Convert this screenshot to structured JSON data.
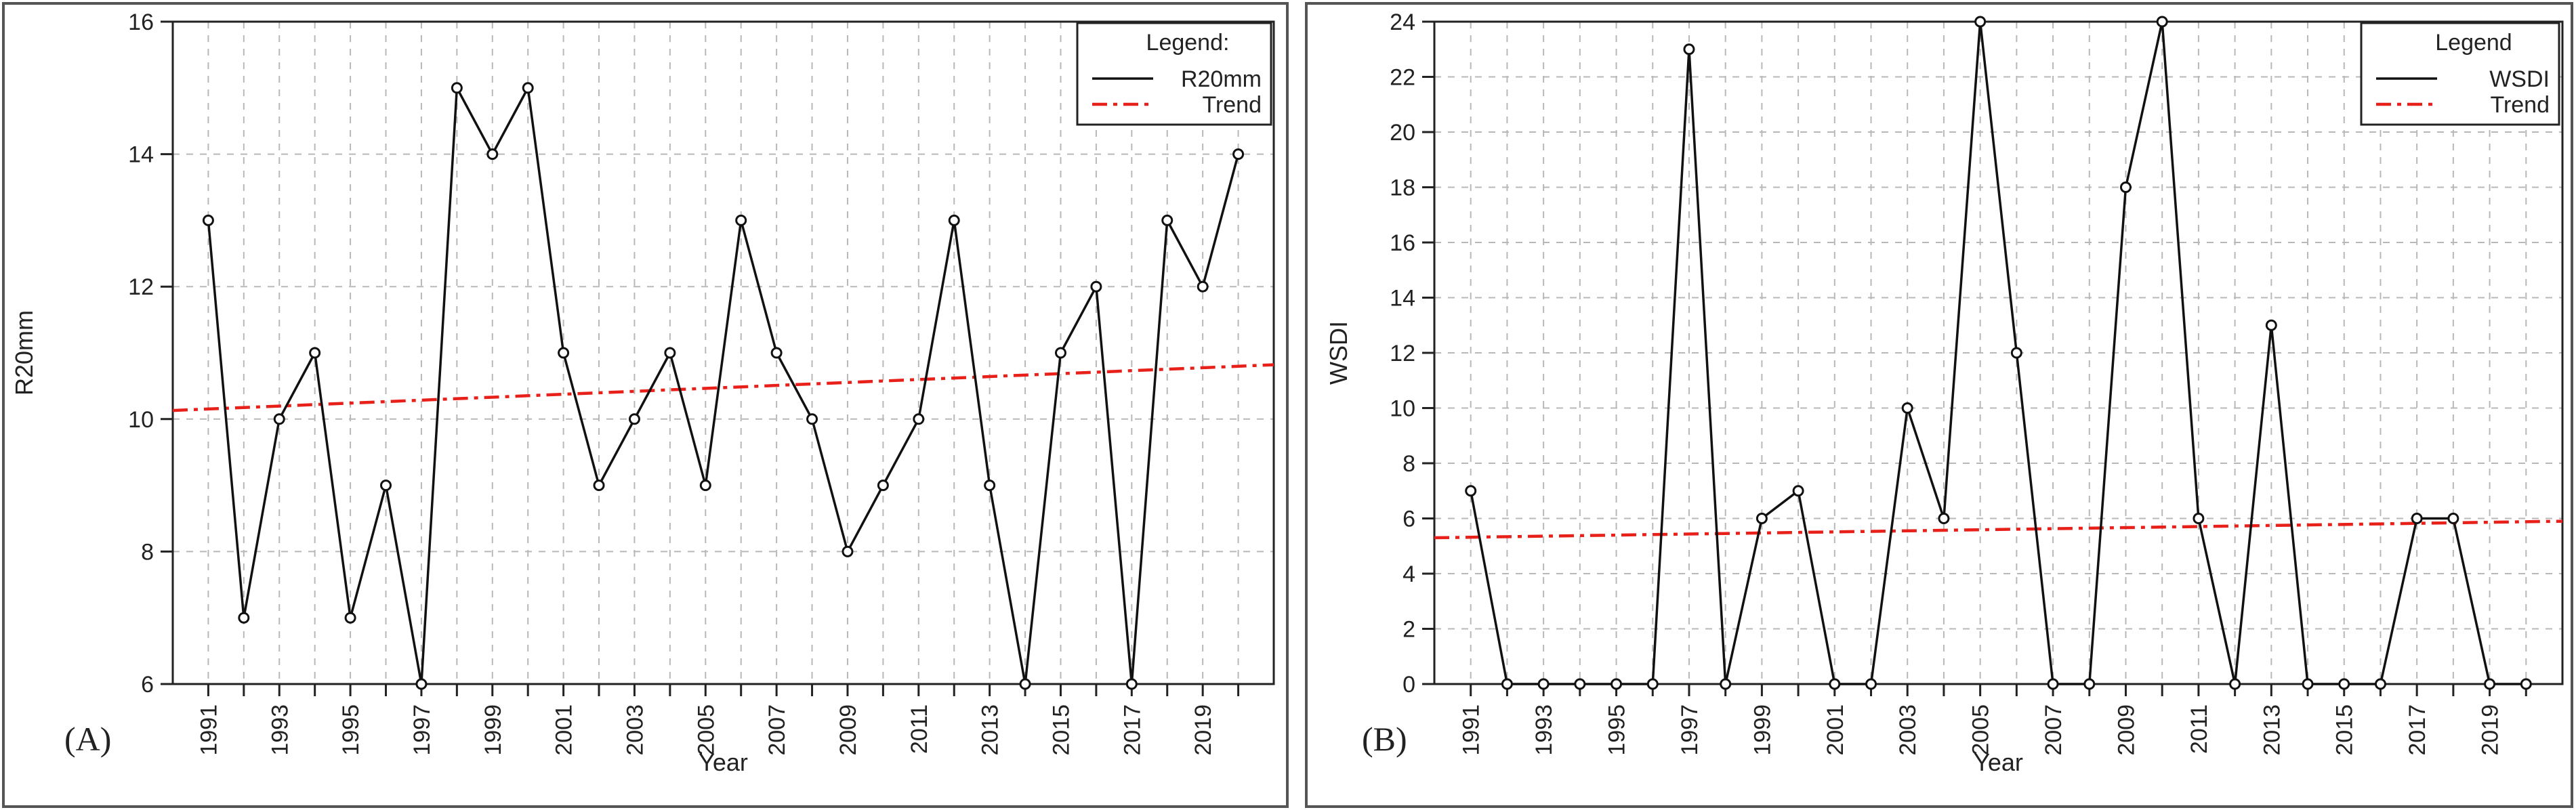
{
  "chart_data": [
    {
      "type": "line",
      "panel_label": "(A)",
      "xlabel": "Year",
      "ylabel": "R20mm",
      "ylim": [
        6,
        16
      ],
      "yticks": [
        6,
        8,
        10,
        12,
        14,
        16
      ],
      "x": [
        1991,
        1992,
        1993,
        1994,
        1995,
        1996,
        1997,
        1998,
        1999,
        2000,
        2001,
        2002,
        2003,
        2004,
        2005,
        2006,
        2007,
        2008,
        2009,
        2010,
        2011,
        2012,
        2013,
        2014,
        2015,
        2016,
        2017,
        2018,
        2019,
        2020
      ],
      "xtick_labels": [
        "1991",
        "1993",
        "1995",
        "1997",
        "1999",
        "2001",
        "2003",
        "2005",
        "2007",
        "2009",
        "2011",
        "2013",
        "2015",
        "2017",
        "2019"
      ],
      "grid": true,
      "legend": {
        "title": "Legend:",
        "position": "top-right",
        "entries": [
          "R20mm",
          "Trend"
        ]
      },
      "series": [
        {
          "name": "R20mm",
          "values": [
            13,
            7,
            10,
            11,
            7,
            9,
            6,
            15,
            14,
            15,
            11,
            9,
            10,
            11,
            9,
            13,
            11,
            10,
            8,
            9,
            10,
            13,
            9,
            6,
            11,
            12,
            6,
            13,
            12,
            14
          ]
        },
        {
          "name": "Trend",
          "style": "dash-dot",
          "color": "#e8201a",
          "x": [
            1990,
            2021
          ],
          "values": [
            10.13,
            10.82
          ]
        }
      ]
    },
    {
      "type": "line",
      "panel_label": "(B)",
      "xlabel": "Year",
      "ylabel": "WSDI",
      "ylim": [
        0,
        24
      ],
      "yticks": [
        0,
        2,
        4,
        6,
        8,
        10,
        12,
        14,
        16,
        18,
        20,
        22,
        24
      ],
      "x": [
        1991,
        1992,
        1993,
        1994,
        1995,
        1996,
        1997,
        1998,
        1999,
        2000,
        2001,
        2002,
        2003,
        2004,
        2005,
        2006,
        2007,
        2008,
        2009,
        2010,
        2011,
        2012,
        2013,
        2014,
        2015,
        2016,
        2017,
        2018,
        2019,
        2020
      ],
      "xtick_labels": [
        "1991",
        "1993",
        "1995",
        "1997",
        "1999",
        "2001",
        "2003",
        "2005",
        "2007",
        "2009",
        "2011",
        "2013",
        "2015",
        "2017",
        "2019"
      ],
      "grid": true,
      "legend": {
        "title": "Legend",
        "position": "top-right",
        "entries": [
          "WSDI",
          "Trend"
        ]
      },
      "series": [
        {
          "name": "WSDI",
          "values": [
            7,
            0,
            0,
            0,
            0,
            0,
            23,
            0,
            6,
            7,
            0,
            0,
            10,
            6,
            24,
            12,
            0,
            0,
            18,
            24,
            6,
            0,
            13,
            0,
            0,
            0,
            6,
            6,
            0,
            0
          ]
        },
        {
          "name": "Trend",
          "style": "dash-dot",
          "color": "#e8201a",
          "x": [
            1990,
            2021
          ],
          "values": [
            5.3,
            5.9
          ]
        }
      ]
    }
  ]
}
